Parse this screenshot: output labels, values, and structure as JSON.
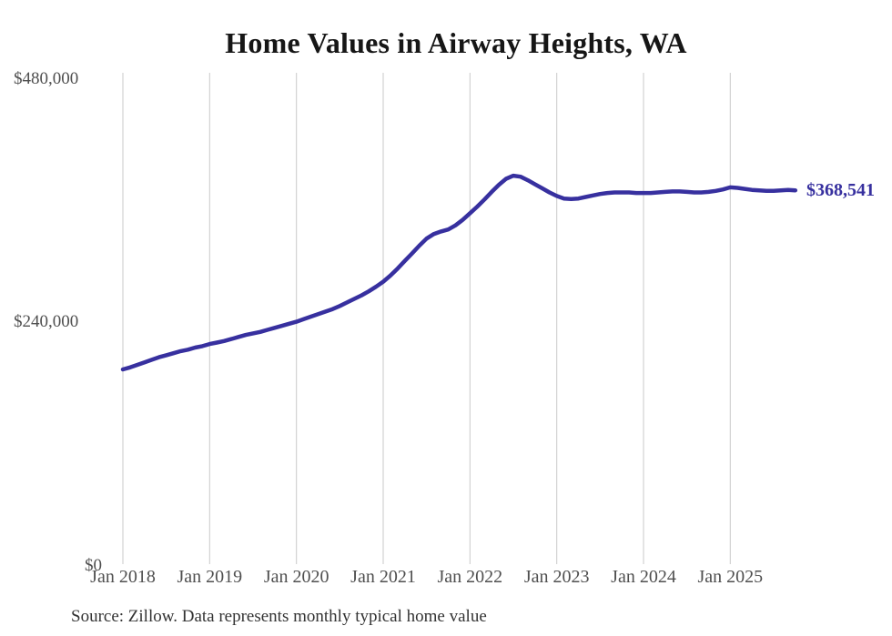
{
  "title": "Home Values in Airway Heights, WA",
  "source_note": "Source: Zillow. Data represents monthly typical home value",
  "latest_value_label": "$368,541",
  "colors": {
    "line": "#37309f",
    "grid": "#c9c9c9",
    "axis_text": "#4f4f4f",
    "title_text": "#161616",
    "source_text": "#333333",
    "background": "#ffffff"
  },
  "y_axis": {
    "ticks": [
      {
        "label": "$0",
        "value": 0
      },
      {
        "label": "$240,000",
        "value": 240000
      },
      {
        "label": "$480,000",
        "value": 480000
      }
    ],
    "max": 480000
  },
  "x_axis": {
    "ticks": [
      "Jan 2018",
      "Jan 2019",
      "Jan 2020",
      "Jan 2021",
      "Jan 2022",
      "Jan 2023",
      "Jan 2024",
      "Jan 2025"
    ]
  },
  "chart_data": {
    "type": "line",
    "title": "Home Values in Airway Heights, WA",
    "xlabel": "",
    "ylabel": "",
    "ylim": [
      0,
      480000
    ],
    "grid": "vertical-only",
    "legend": "none",
    "annotation": {
      "text": "$368,541",
      "position": "line-end"
    },
    "x": [
      "2018-01",
      "2018-02",
      "2018-03",
      "2018-04",
      "2018-05",
      "2018-06",
      "2018-07",
      "2018-08",
      "2018-09",
      "2018-10",
      "2018-11",
      "2018-12",
      "2019-01",
      "2019-02",
      "2019-03",
      "2019-04",
      "2019-05",
      "2019-06",
      "2019-07",
      "2019-08",
      "2019-09",
      "2019-10",
      "2019-11",
      "2019-12",
      "2020-01",
      "2020-02",
      "2020-03",
      "2020-04",
      "2020-05",
      "2020-06",
      "2020-07",
      "2020-08",
      "2020-09",
      "2020-10",
      "2020-11",
      "2020-12",
      "2021-01",
      "2021-02",
      "2021-03",
      "2021-04",
      "2021-05",
      "2021-06",
      "2021-07",
      "2021-08",
      "2021-09",
      "2021-10",
      "2021-11",
      "2021-12",
      "2022-01",
      "2022-02",
      "2022-03",
      "2022-04",
      "2022-05",
      "2022-06",
      "2022-07",
      "2022-08",
      "2022-09",
      "2022-10",
      "2022-11",
      "2022-12",
      "2023-01",
      "2023-02",
      "2023-03",
      "2023-04",
      "2023-05",
      "2023-06",
      "2023-07",
      "2023-08",
      "2023-09",
      "2023-10",
      "2023-11",
      "2023-12",
      "2024-01",
      "2024-02",
      "2024-03",
      "2024-04",
      "2024-05",
      "2024-06",
      "2024-07",
      "2024-08",
      "2024-09",
      "2024-10",
      "2024-11",
      "2024-12",
      "2025-01",
      "2025-02",
      "2025-03",
      "2025-04",
      "2025-05",
      "2025-06",
      "2025-07",
      "2025-08",
      "2025-09",
      "2025-10"
    ],
    "values": [
      192000,
      194000,
      196500,
      199000,
      201500,
      204000,
      206000,
      208000,
      210000,
      211500,
      213500,
      215000,
      217000,
      218500,
      220000,
      222000,
      224000,
      226000,
      227500,
      229000,
      231000,
      233000,
      235000,
      237000,
      239000,
      241500,
      244000,
      246500,
      249000,
      251500,
      254500,
      258000,
      261500,
      265000,
      269000,
      273500,
      278500,
      284500,
      291500,
      299000,
      306500,
      314000,
      321000,
      325500,
      328000,
      330000,
      334000,
      339500,
      346000,
      352500,
      359500,
      367000,
      374000,
      380000,
      383000,
      382000,
      378500,
      374500,
      370500,
      366500,
      363000,
      360500,
      360000,
      360500,
      362000,
      363500,
      365000,
      366000,
      366500,
      366500,
      366500,
      366000,
      366000,
      366000,
      366500,
      367000,
      367500,
      367500,
      367000,
      366500,
      366500,
      367000,
      368000,
      369500,
      371500,
      371000,
      370000,
      369000,
      368500,
      368000,
      368000,
      368500,
      369000,
      368541
    ]
  }
}
